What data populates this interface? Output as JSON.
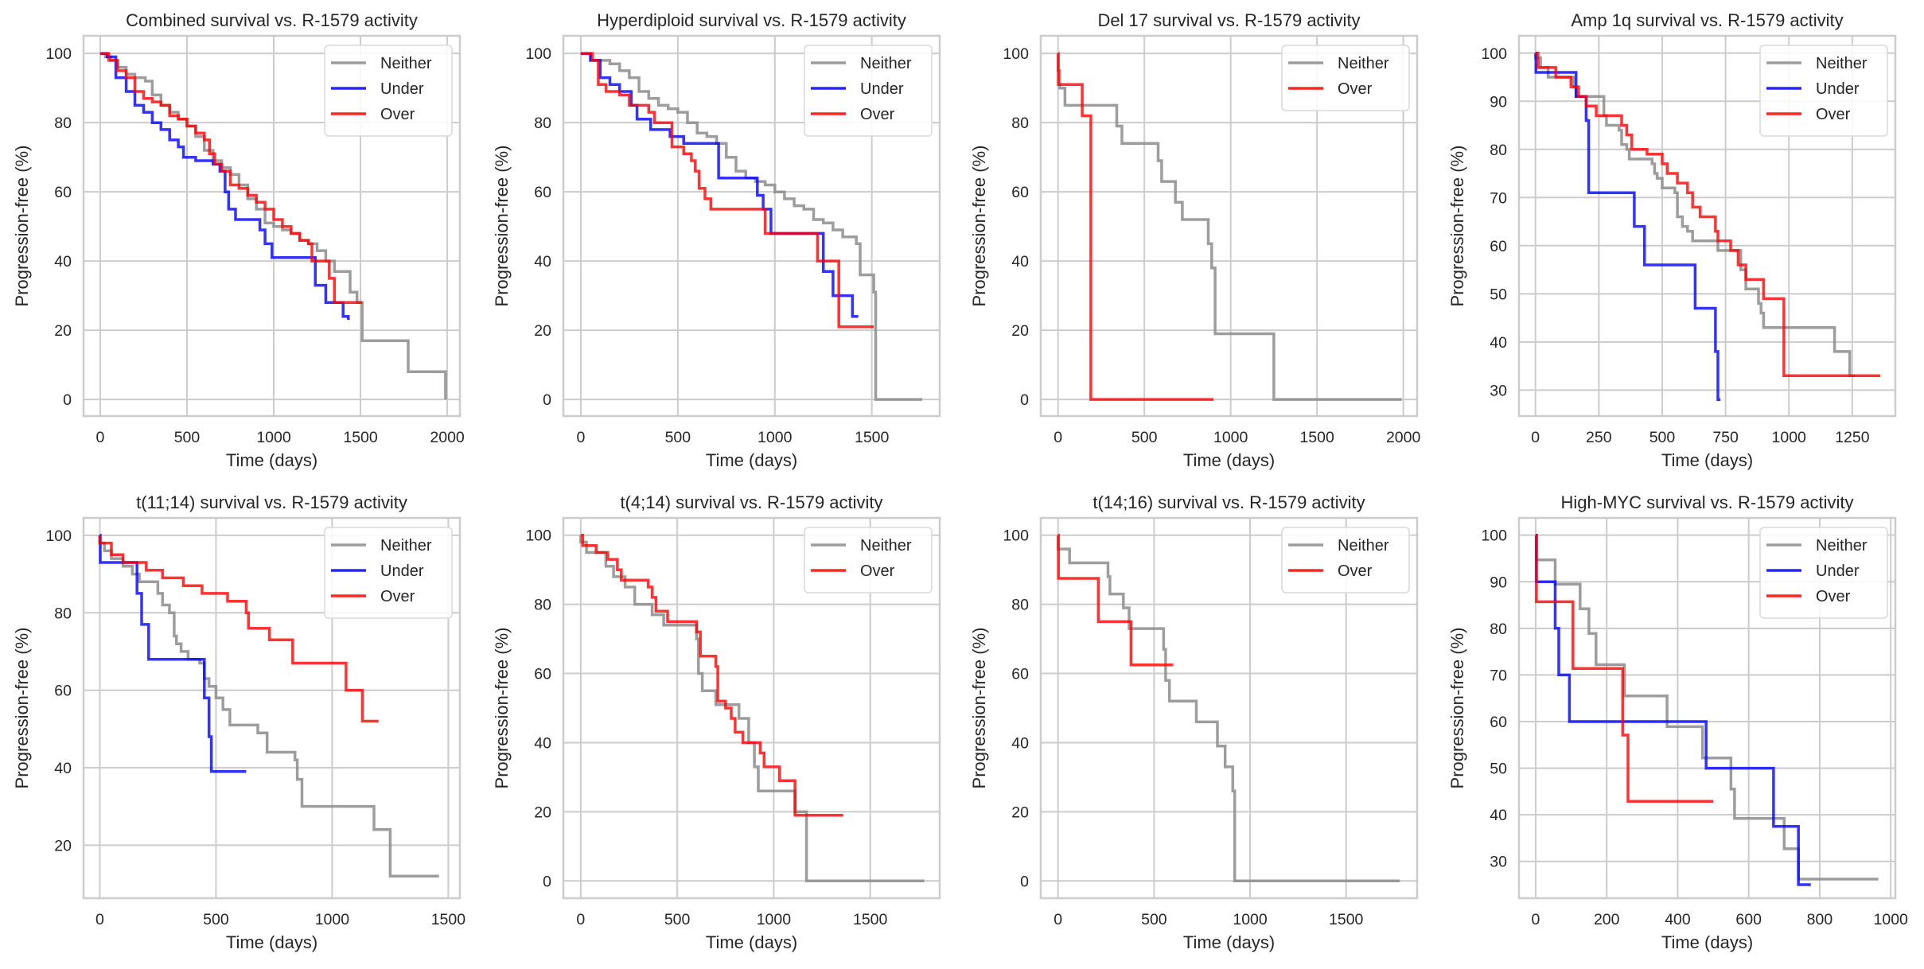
{
  "figure": {
    "colors": {
      "Neither": "#8c8c8c",
      "Under": "#0000ff",
      "Over": "#ff0000",
      "grid": "#cccccc",
      "frame": "#cccccc"
    }
  },
  "chart_data": [
    {
      "type": "line",
      "step": true,
      "title": "Combined survival vs. R-1579 activity",
      "xlabel": "Time (days)",
      "ylabel": "Progression-free (%)",
      "xlim": [
        -96,
        2073
      ],
      "ylim": [
        -4.8,
        105.1
      ],
      "xticks": [
        0,
        500,
        1000,
        1500,
        2000
      ],
      "yticks": [
        0,
        20,
        40,
        60,
        80,
        100
      ],
      "grid": true,
      "legend": "top-right",
      "series": [
        {
          "name": "Neither",
          "x": [
            0,
            30,
            60,
            100,
            150,
            200,
            260,
            300,
            350,
            400,
            450,
            500,
            550,
            600,
            650,
            700,
            750,
            800,
            850,
            900,
            950,
            1000,
            1050,
            1100,
            1150,
            1200,
            1250,
            1300,
            1350,
            1420,
            1440,
            1480,
            1510,
            1760,
            1775,
            1990
          ],
          "y": [
            100,
            99,
            98,
            96,
            94,
            93,
            92,
            88,
            85,
            83,
            81,
            79,
            76,
            72,
            69,
            67,
            65,
            62,
            58,
            55,
            51,
            50,
            49,
            48,
            46,
            45,
            43,
            40,
            37,
            37,
            31,
            28,
            17,
            17,
            8,
            0
          ]
        },
        {
          "name": "Under",
          "x": [
            0,
            40,
            90,
            150,
            200,
            250,
            300,
            350,
            400,
            450,
            480,
            550,
            650,
            690,
            720,
            740,
            780,
            900,
            920,
            950,
            990,
            1230,
            1240,
            1300,
            1400,
            1430
          ],
          "y": [
            100,
            99,
            93,
            89,
            85,
            83,
            80,
            78,
            75,
            73,
            70,
            69,
            68,
            66,
            60,
            55,
            52,
            52,
            49,
            45,
            41,
            41,
            33,
            28,
            24,
            23
          ]
        },
        {
          "name": "Over",
          "x": [
            0,
            50,
            100,
            150,
            200,
            250,
            300,
            350,
            400,
            450,
            500,
            550,
            600,
            630,
            660,
            700,
            750,
            800,
            850,
            900,
            950,
            1000,
            1050,
            1100,
            1150,
            1200,
            1220,
            1320,
            1350,
            1510
          ],
          "y": [
            100,
            98,
            95,
            93,
            89,
            87,
            86,
            85,
            82,
            81,
            79,
            77,
            75,
            71,
            68,
            66,
            62,
            61,
            59,
            57,
            55,
            52,
            50,
            48,
            46,
            45,
            40,
            35,
            28,
            28
          ]
        }
      ]
    },
    {
      "type": "line",
      "step": true,
      "title": "Hyperdiploid survival vs. R-1579 activity",
      "xlabel": "Time (days)",
      "ylabel": "Progression-free (%)",
      "xlim": [
        -90,
        1850
      ],
      "ylim": [
        -4.8,
        105.1
      ],
      "xticks": [
        0,
        500,
        1000,
        1500
      ],
      "yticks": [
        0,
        20,
        40,
        60,
        80,
        100
      ],
      "grid": true,
      "legend": "top-right",
      "series": [
        {
          "name": "Neither",
          "x": [
            0,
            50,
            150,
            200,
            250,
            300,
            350,
            400,
            450,
            500,
            550,
            600,
            650,
            700,
            750,
            800,
            850,
            900,
            950,
            1000,
            1050,
            1100,
            1150,
            1200,
            1250,
            1300,
            1350,
            1420,
            1440,
            1510,
            1520,
            1760
          ],
          "y": [
            100,
            98,
            97,
            95,
            93,
            89,
            87,
            85,
            84,
            83,
            80,
            77,
            76,
            74,
            70,
            66,
            64,
            63,
            62,
            60,
            58,
            56,
            55,
            52,
            51,
            49,
            47,
            45,
            36,
            31,
            0,
            0
          ]
        },
        {
          "name": "Under",
          "x": [
            0,
            50,
            100,
            150,
            200,
            260,
            290,
            360,
            460,
            530,
            700,
            710,
            890,
            910,
            940,
            980,
            1230,
            1250,
            1300,
            1400,
            1430
          ],
          "y": [
            100,
            98,
            93,
            91,
            89,
            85,
            81,
            78,
            76,
            74,
            74,
            64,
            64,
            59,
            55,
            48,
            48,
            37,
            30,
            24,
            24
          ]
        },
        {
          "name": "Over",
          "x": [
            0,
            60,
            90,
            130,
            200,
            250,
            300,
            350,
            380,
            450,
            470,
            530,
            570,
            590,
            610,
            640,
            670,
            940,
            950,
            1220,
            1330,
            1510
          ],
          "y": [
            100,
            98,
            91,
            89,
            88,
            85,
            85,
            83,
            80,
            80,
            73,
            71,
            69,
            66,
            61,
            58,
            55,
            55,
            48,
            40,
            21,
            21
          ]
        }
      ]
    },
    {
      "type": "line",
      "step": true,
      "title": "Del 17 survival vs. R-1579 activity",
      "xlabel": "Time (days)",
      "ylabel": "Progression-free (%)",
      "xlim": [
        -100,
        2080
      ],
      "ylim": [
        -4.8,
        105.1
      ],
      "xticks": [
        0,
        500,
        1000,
        1500,
        2000
      ],
      "yticks": [
        0,
        20,
        40,
        60,
        80,
        100
      ],
      "grid": true,
      "legend": "top-right",
      "series": [
        {
          "name": "Neither",
          "x": [
            0,
            10,
            40,
            340,
            370,
            580,
            600,
            680,
            720,
            870,
            890,
            910,
            1250,
            1990
          ],
          "y": [
            95,
            90,
            85,
            79,
            74,
            69,
            63,
            57,
            52,
            45,
            38,
            19,
            0,
            0
          ]
        },
        {
          "name": "Over",
          "x": [
            0,
            2,
            140,
            190,
            900
          ],
          "y": [
            100,
            91,
            82,
            0,
            0
          ]
        }
      ]
    },
    {
      "type": "line",
      "step": true,
      "title": "Amp 1q survival vs. R-1579 activity",
      "xlabel": "Time (days)",
      "ylabel": "Progression-free (%)",
      "xlim": [
        -65,
        1420
      ],
      "ylim": [
        24.6,
        103.6
      ],
      "xticks": [
        0,
        250,
        500,
        750,
        1000,
        1250
      ],
      "yticks": [
        30,
        40,
        50,
        60,
        70,
        80,
        90,
        100
      ],
      "grid": true,
      "legend": "top-right",
      "series": [
        {
          "name": "Neither",
          "x": [
            0,
            20,
            50,
            150,
            160,
            260,
            270,
            280,
            330,
            340,
            360,
            370,
            460,
            470,
            480,
            500,
            550,
            560,
            580,
            600,
            620,
            640,
            720,
            810,
            830,
            880,
            890,
            900,
            1180,
            1240,
            1260
          ],
          "y": [
            99,
            97,
            95,
            93,
            91,
            91,
            87,
            85,
            84,
            81,
            80,
            78,
            77,
            75,
            74,
            72,
            71,
            66,
            64,
            63,
            61,
            61,
            59,
            55,
            51,
            48,
            46,
            43,
            38,
            33,
            33
          ]
        },
        {
          "name": "Under",
          "x": [
            0,
            2,
            150,
            160,
            200,
            210,
            390,
            430,
            630,
            710,
            720,
            730
          ],
          "y": [
            100,
            96,
            96,
            91,
            86,
            71,
            64,
            56,
            47,
            38,
            28,
            28
          ]
        },
        {
          "name": "Over",
          "x": [
            0,
            10,
            80,
            140,
            170,
            200,
            240,
            340,
            360,
            380,
            440,
            500,
            520,
            560,
            600,
            620,
            650,
            710,
            720,
            770,
            800,
            830,
            900,
            980,
            1360
          ],
          "y": [
            100,
            97,
            95,
            93,
            91,
            89,
            87,
            85,
            83,
            80,
            79,
            77,
            75,
            73,
            71,
            68,
            66,
            63,
            61,
            59,
            56,
            53,
            49,
            33,
            33
          ]
        }
      ]
    },
    {
      "type": "line",
      "step": true,
      "title": "t(11;14) survival vs. R-1579 activity",
      "xlabel": "Time (days)",
      "ylabel": "Progression-free (%)",
      "xlim": [
        -70,
        1550
      ],
      "ylim": [
        6.3,
        104.5
      ],
      "xticks": [
        0,
        500,
        1000,
        1500
      ],
      "yticks": [
        20,
        40,
        60,
        80,
        100
      ],
      "grid": true,
      "legend": "top-right",
      "series": [
        {
          "name": "Neither",
          "x": [
            0,
            20,
            50,
            100,
            140,
            170,
            250,
            270,
            300,
            320,
            330,
            350,
            380,
            430,
            450,
            470,
            500,
            530,
            560,
            680,
            720,
            840,
            850,
            870,
            1180,
            1250,
            1460
          ],
          "y": [
            98,
            96,
            94,
            92,
            90,
            88,
            85,
            82,
            80,
            74,
            72,
            70,
            68,
            67,
            63,
            61,
            58,
            55,
            51,
            49,
            44,
            42,
            37,
            30,
            24,
            12,
            12
          ]
        },
        {
          "name": "Under",
          "x": [
            0,
            2,
            160,
            180,
            210,
            440,
            450,
            470,
            480,
            630
          ],
          "y": [
            100,
            93,
            85,
            77,
            68,
            68,
            58,
            48,
            39,
            39
          ]
        },
        {
          "name": "Over",
          "x": [
            0,
            50,
            100,
            200,
            270,
            360,
            440,
            550,
            630,
            640,
            730,
            830,
            1060,
            1130,
            1200
          ],
          "y": [
            98,
            95,
            93,
            91,
            89,
            87,
            85,
            83,
            80,
            76,
            73,
            67,
            60,
            52,
            52
          ]
        }
      ]
    },
    {
      "type": "line",
      "step": true,
      "title": "t(4;14) survival vs. R-1579 activity",
      "xlabel": "Time (days)",
      "ylabel": "Progression-free (%)",
      "xlim": [
        -90,
        1860
      ],
      "ylim": [
        -5,
        105
      ],
      "xticks": [
        0,
        500,
        1000,
        1500
      ],
      "yticks": [
        0,
        20,
        40,
        60,
        80,
        100
      ],
      "grid": true,
      "legend": "top-right",
      "series": [
        {
          "name": "Neither",
          "x": [
            0,
            30,
            130,
            170,
            230,
            280,
            370,
            430,
            600,
            610,
            630,
            700,
            820,
            870,
            900,
            920,
            1110,
            1170,
            1780
          ],
          "y": [
            98,
            95,
            91,
            88,
            85,
            80,
            77,
            74,
            70,
            60,
            55,
            51,
            47,
            40,
            33,
            26,
            20,
            0,
            0
          ]
        },
        {
          "name": "Over",
          "x": [
            0,
            10,
            80,
            140,
            190,
            210,
            350,
            370,
            390,
            450,
            600,
            620,
            700,
            710,
            750,
            780,
            800,
            840,
            930,
            950,
            1030,
            1110,
            1360
          ],
          "y": [
            100,
            97,
            95,
            93,
            90,
            87,
            85,
            82,
            78,
            75,
            72,
            65,
            62,
            52,
            50,
            47,
            43,
            40,
            37,
            33,
            29,
            19,
            19
          ]
        }
      ]
    },
    {
      "type": "line",
      "step": true,
      "title": "t(14;16) survival vs. R-1579 activity",
      "xlabel": "Time (days)",
      "ylabel": "Progression-free (%)",
      "xlim": [
        -90,
        1870
      ],
      "ylim": [
        -5,
        105
      ],
      "xticks": [
        0,
        500,
        1000,
        1500
      ],
      "yticks": [
        0,
        20,
        40,
        60,
        80,
        100
      ],
      "grid": true,
      "legend": "top-right",
      "series": [
        {
          "name": "Neither",
          "x": [
            0,
            60,
            260,
            270,
            340,
            370,
            550,
            560,
            580,
            720,
            830,
            870,
            910,
            920,
            1780
          ],
          "y": [
            96,
            92,
            88,
            83,
            79,
            73,
            67,
            58,
            52,
            46,
            39,
            33,
            26,
            0,
            0
          ]
        },
        {
          "name": "Over",
          "x": [
            0,
            2,
            210,
            380,
            600
          ],
          "y": [
            100,
            87.5,
            75,
            62.5,
            62.5
          ]
        }
      ]
    },
    {
      "type": "line",
      "step": true,
      "title": "High-MYC survival vs. R-1579 activity",
      "xlabel": "Time (days)",
      "ylabel": "Progression-free (%)",
      "xlim": [
        -47,
        1013
      ],
      "ylim": [
        22.1,
        103.7
      ],
      "xticks": [
        0,
        200,
        400,
        600,
        800,
        1000
      ],
      "yticks": [
        30,
        40,
        50,
        60,
        70,
        80,
        90,
        100
      ],
      "grid": true,
      "legend": "top-right",
      "series": [
        {
          "name": "Neither",
          "x": [
            0,
            2,
            55,
            125,
            150,
            170,
            250,
            370,
            470,
            550,
            560,
            700,
            740,
            965
          ],
          "y": [
            100,
            94.7,
            89.5,
            84.2,
            78.9,
            72.2,
            65.5,
            58.9,
            52.2,
            45.5,
            39.2,
            32.7,
            26.2,
            26.2
          ]
        },
        {
          "name": "Under",
          "x": [
            0,
            2,
            55,
            65,
            95,
            480,
            670,
            740,
            775
          ],
          "y": [
            100,
            90,
            80,
            70,
            60,
            50,
            37.5,
            25,
            25
          ]
        },
        {
          "name": "Over",
          "x": [
            0,
            2,
            105,
            245,
            260,
            500
          ],
          "y": [
            100,
            85.7,
            71.4,
            57.1,
            42.9,
            42.9
          ]
        }
      ]
    }
  ]
}
